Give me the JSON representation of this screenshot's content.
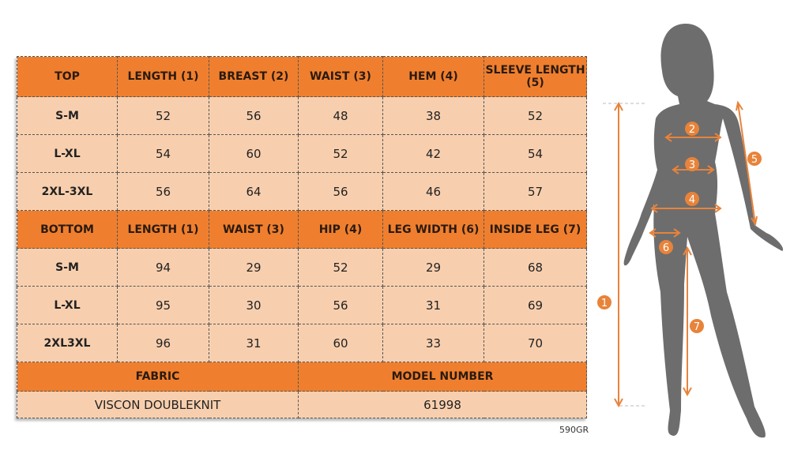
{
  "top_table": {
    "headers": [
      "TOP",
      "LENGTH (1)",
      "BREAST (2)",
      "WAIST (3)",
      "HEM (4)",
      "SLEEVE LENGTH (5)"
    ],
    "rows": [
      [
        "S-M",
        "52",
        "56",
        "48",
        "38",
        "52"
      ],
      [
        "L-XL",
        "54",
        "60",
        "52",
        "42",
        "54"
      ],
      [
        "2XL-3XL",
        "56",
        "64",
        "56",
        "46",
        "57"
      ]
    ]
  },
  "bottom_table": {
    "headers": [
      "BOTTOM",
      "LENGTH (1)",
      "WAIST (3)",
      "HIP (4)",
      "LEG WIDTH (6)",
      "INSIDE LEG (7)"
    ],
    "rows": [
      [
        "S-M",
        "94",
        "29",
        "52",
        "29",
        "68"
      ],
      [
        "L-XL",
        "95",
        "30",
        "56",
        "31",
        "69"
      ],
      [
        "2XL3XL",
        "96",
        "31",
        "60",
        "33",
        "70"
      ]
    ]
  },
  "fabric": {
    "label": "FABRIC",
    "value": "VISCON DOUBLEKNIT"
  },
  "model": {
    "label": "MODEL NUMBER",
    "value": "61998"
  },
  "code": "590GR",
  "figure": {
    "markers": [
      "1",
      "2",
      "3",
      "4",
      "5",
      "6",
      "7"
    ]
  },
  "colors": {
    "header": "#ef7f2e",
    "cell": "#f8cfae",
    "silhouette": "#6d6d6d",
    "marker": "#e8833a"
  }
}
